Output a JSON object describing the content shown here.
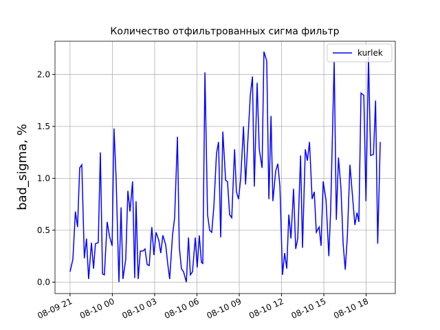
{
  "chart_data": {
    "type": "line",
    "title": "Количество отфильтрованных сигма фильтр",
    "ylabel": "bad_sigma, %",
    "x": [
      "08-09 21:00",
      "08-09 21:12",
      "08-09 21:23",
      "08-09 21:32",
      "08-09 21:41",
      "08-09 21:50",
      "08-09 22:01",
      "08-09 22:10",
      "08-09 22:19",
      "08-09 22:31",
      "08-09 22:40",
      "08-09 22:48",
      "08-09 23:00",
      "08-09 23:09",
      "08-09 23:18",
      "08-09 23:26",
      "08-09 23:38",
      "08-09 23:47",
      "08-09 23:59",
      "08-10 00:07",
      "08-10 00:16",
      "08-10 00:28",
      "08-10 00:37",
      "08-10 00:45",
      "08-10 00:57",
      "08-10 01:06",
      "08-10 01:15",
      "08-10 01:26",
      "08-10 01:35",
      "08-10 01:41",
      "08-10 01:50",
      "08-10 01:59",
      "08-10 02:10",
      "08-10 02:19",
      "08-10 02:28",
      "08-10 02:37",
      "08-10 02:48",
      "08-10 02:57",
      "08-10 03:06",
      "08-10 03:18",
      "08-10 03:26",
      "08-10 03:35",
      "08-10 03:47",
      "08-10 03:56",
      "08-10 04:04",
      "08-10 04:16",
      "08-10 04:25",
      "08-10 04:37",
      "08-10 04:45",
      "08-10 04:54",
      "08-10 05:03",
      "08-10 05:15",
      "08-10 05:24",
      "08-10 05:32",
      "08-10 05:41",
      "08-10 05:53",
      "08-10 06:01",
      "08-10 06:10",
      "08-10 06:19",
      "08-10 06:25",
      "08-10 06:34",
      "08-10 06:45",
      "08-10 06:54",
      "08-10 07:03",
      "08-10 07:12",
      "08-10 07:23",
      "08-10 07:32",
      "08-10 07:41",
      "08-10 07:50",
      "08-10 08:02",
      "08-10 08:10",
      "08-10 08:19",
      "08-10 08:28",
      "08-10 08:40",
      "08-10 08:48",
      "08-10 08:57",
      "08-10 09:06",
      "08-10 09:18",
      "08-10 09:27",
      "08-10 09:35",
      "08-10 09:47",
      "08-10 09:56",
      "08-10 10:04",
      "08-10 10:16",
      "08-10 10:25",
      "08-10 10:37",
      "08-10 10:45",
      "08-10 10:57",
      "08-10 11:06",
      "08-10 11:15",
      "08-10 11:23",
      "08-10 11:35",
      "08-10 11:44",
      "08-10 11:53",
      "08-10 12:04",
      "08-10 12:13",
      "08-10 12:22",
      "08-10 12:31",
      "08-10 12:40",
      "08-10 12:51",
      "08-10 13:00",
      "08-10 13:09",
      "08-10 13:21",
      "08-10 13:29",
      "08-10 13:41",
      "08-10 13:50",
      "08-10 13:59",
      "08-10 14:10",
      "08-10 14:19",
      "08-10 14:28",
      "08-10 14:40",
      "08-10 14:48",
      "08-10 14:57",
      "08-10 15:09",
      "08-10 15:21",
      "08-10 15:29",
      "08-10 15:44",
      "08-10 15:53",
      "08-10 16:02",
      "08-10 16:13",
      "08-10 16:22",
      "08-10 16:31",
      "08-10 16:40",
      "08-10 16:51",
      "08-10 17:00",
      "08-10 17:12",
      "08-10 17:21",
      "08-10 17:29",
      "08-10 17:38",
      "08-10 17:50",
      "08-10 17:59",
      "08-10 18:10",
      "08-10 18:19",
      "08-10 18:31",
      "08-10 18:40",
      "08-10 18:49",
      "08-10 19:00"
    ],
    "series": [
      {
        "name": "kurlek",
        "color": "#0000ff",
        "values": [
          0.1,
          0.22,
          0.68,
          0.53,
          1.1,
          1.13,
          0.23,
          0.42,
          0.03,
          0.38,
          0.13,
          0.37,
          0.38,
          1.25,
          0.08,
          0.07,
          0.58,
          0.45,
          0.35,
          1.48,
          1.0,
          0.0,
          0.72,
          0.03,
          0.22,
          0.88,
          0.68,
          0.97,
          0.04,
          0.78,
          0.03,
          0.3,
          0.3,
          0.32,
          0.17,
          0.16,
          0.53,
          0.26,
          0.48,
          0.4,
          0.28,
          0.45,
          0.36,
          0.17,
          0.03,
          0.45,
          0.62,
          1.4,
          0.34,
          0.13,
          0.1,
          0.0,
          0.43,
          0.07,
          0.1,
          0.43,
          0.14,
          0.45,
          0.19,
          0.18,
          2.02,
          0.65,
          0.5,
          0.48,
          0.73,
          1.24,
          1.35,
          0.43,
          1.45,
          0.98,
          0.97,
          0.65,
          0.62,
          1.28,
          0.87,
          0.8,
          1.0,
          1.5,
          0.94,
          1.3,
          1.8,
          1.98,
          0.92,
          1.92,
          1.28,
          1.1,
          2.22,
          2.13,
          0.8,
          1.6,
          0.78,
          1.07,
          1.14,
          0.92,
          0.07,
          0.28,
          0.13,
          0.65,
          0.42,
          0.9,
          0.32,
          0.42,
          1.22,
          0.33,
          1.28,
          1.17,
          1.35,
          0.8,
          0.87,
          0.48,
          0.53,
          0.35,
          0.97,
          0.79,
          0.25,
          0.7,
          2.13,
          0.6,
          1.2,
          0.9,
          0.37,
          0.12,
          0.45,
          1.13,
          0.88,
          0.55,
          0.67,
          0.58,
          1.82,
          1.8,
          0.78,
          2.17,
          1.22,
          1.23,
          1.75,
          0.37,
          1.35
        ]
      }
    ],
    "xlim": [
      "08-09 19:56",
      "08-10 20:04"
    ],
    "xticks": [
      {
        "value": "08-09 21:00",
        "label": "08-09 21"
      },
      {
        "value": "08-10 00:00",
        "label": "08-10 00"
      },
      {
        "value": "08-10 03:00",
        "label": "08-10 03"
      },
      {
        "value": "08-10 06:00",
        "label": "08-10 06"
      },
      {
        "value": "08-10 09:00",
        "label": "08-10 09"
      },
      {
        "value": "08-10 12:00",
        "label": "08-10 12"
      },
      {
        "value": "08-10 15:00",
        "label": "08-10 15"
      },
      {
        "value": "08-10 18:00",
        "label": "08-10 18"
      }
    ],
    "ylim": [
      -0.11,
      2.32
    ],
    "yticks": [
      {
        "value": 0,
        "label": "0.0"
      },
      {
        "value": 0.5,
        "label": "0.5"
      },
      {
        "value": 1,
        "label": "1.0"
      },
      {
        "value": 1.5,
        "label": "1.5"
      },
      {
        "value": 2,
        "label": "2.0"
      }
    ],
    "grid": true,
    "legend": "upper right"
  }
}
